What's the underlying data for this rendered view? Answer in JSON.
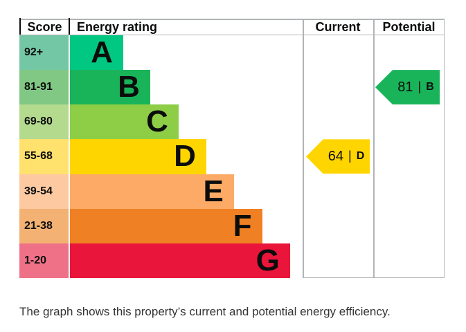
{
  "page": {
    "caption": "The graph shows this property’s current and potential energy efficiency."
  },
  "header": {
    "score": "Score",
    "energy_rating": "Energy rating",
    "current": "Current",
    "potential": "Potential"
  },
  "chart_data": {
    "type": "bar",
    "title": "",
    "categories": [
      "A",
      "B",
      "C",
      "D",
      "E",
      "F",
      "G"
    ],
    "bands": [
      {
        "letter": "A",
        "score_range": "92+",
        "color": "#00c781",
        "tint": "#73c7a4",
        "bar_pct": 22.9
      },
      {
        "letter": "B",
        "score_range": "81-91",
        "color": "#19b459",
        "tint": "#80c884",
        "bar_pct": 34.5
      },
      {
        "letter": "C",
        "score_range": "69-80",
        "color": "#8dce46",
        "tint": "#b4da8d",
        "bar_pct": 46.7
      },
      {
        "letter": "D",
        "score_range": "55-68",
        "color": "#ffd500",
        "tint": "#ffe26e",
        "bar_pct": 58.6
      },
      {
        "letter": "E",
        "score_range": "39-54",
        "color": "#fcaa65",
        "tint": "#fcc9a1",
        "bar_pct": 70.5
      },
      {
        "letter": "F",
        "score_range": "21-38",
        "color": "#ef8023",
        "tint": "#f3b173",
        "bar_pct": 82.6
      },
      {
        "letter": "G",
        "score_range": "1-20",
        "color": "#e9153b",
        "tint": "#ef7188",
        "bar_pct": 94.6
      }
    ],
    "current": {
      "score": "64",
      "band": "D",
      "color": "#ffd500"
    },
    "potential": {
      "score": "81",
      "band": "B",
      "color": "#19b459"
    },
    "separator": "|",
    "xlabel": "",
    "ylabel": "",
    "grid": false,
    "legend_position": "right-columns"
  },
  "colors": {
    "border_gray": "#b1b4b6",
    "border_black": "#0b0c0c",
    "text": "#0b0c0c",
    "caption_text": "#333435"
  }
}
